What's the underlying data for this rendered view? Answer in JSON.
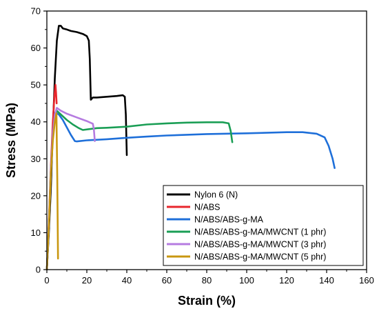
{
  "chart_data": {
    "type": "line",
    "xlabel": "Strain (%)",
    "ylabel": "Stress (MPa)",
    "xlim": [
      0,
      160
    ],
    "ylim": [
      0,
      70
    ],
    "xticks": [
      0,
      20,
      40,
      60,
      80,
      100,
      120,
      140,
      160
    ],
    "yticks": [
      0,
      10,
      20,
      30,
      40,
      50,
      60,
      70
    ],
    "xtick_labels": [
      "0",
      "20",
      "40",
      "60",
      "80",
      "100",
      "120",
      "140",
      "160"
    ],
    "ytick_labels": [
      "0",
      "10",
      "20",
      "30",
      "40",
      "50",
      "60",
      "70"
    ],
    "grid": false,
    "legend_position": "bottom-right",
    "series": [
      {
        "name": "Nylon 6 (N)",
        "color": "#000000",
        "points": [
          [
            0,
            0
          ],
          [
            1,
            10
          ],
          [
            2,
            22
          ],
          [
            3,
            38
          ],
          [
            4,
            52
          ],
          [
            5,
            62
          ],
          [
            6,
            66
          ],
          [
            7,
            66
          ],
          [
            8,
            65.3
          ],
          [
            10,
            65
          ],
          [
            12,
            64.6
          ],
          [
            15,
            64.3
          ],
          [
            18,
            63.8
          ],
          [
            20,
            63.2
          ],
          [
            21,
            62
          ],
          [
            21.5,
            57
          ],
          [
            22,
            46
          ],
          [
            23,
            46.6
          ],
          [
            25,
            46.6
          ],
          [
            30,
            46.8
          ],
          [
            35,
            47
          ],
          [
            38,
            47.2
          ],
          [
            39,
            46.8
          ],
          [
            39.5,
            42
          ],
          [
            40,
            31
          ]
        ]
      },
      {
        "name": "N/ABS",
        "color": "#e8262c",
        "points": [
          [
            0,
            0
          ],
          [
            1,
            13
          ],
          [
            2,
            28
          ],
          [
            3,
            40
          ],
          [
            3.8,
            47
          ],
          [
            4.3,
            50
          ],
          [
            4.6,
            48
          ],
          [
            4.9,
            45
          ]
        ]
      },
      {
        "name": "N/ABS/ABS-g-MA",
        "color": "#1e6fd9",
        "points": [
          [
            0,
            0
          ],
          [
            1,
            12
          ],
          [
            2,
            26
          ],
          [
            3,
            36
          ],
          [
            4,
            41
          ],
          [
            5,
            42.3
          ],
          [
            6,
            42
          ],
          [
            8,
            40.5
          ],
          [
            10,
            38.5
          ],
          [
            12,
            36.5
          ],
          [
            14,
            34.8
          ],
          [
            15,
            34.7
          ],
          [
            20,
            35
          ],
          [
            30,
            35.3
          ],
          [
            40,
            35.7
          ],
          [
            50,
            36
          ],
          [
            60,
            36.3
          ],
          [
            80,
            36.7
          ],
          [
            100,
            36.9
          ],
          [
            120,
            37.2
          ],
          [
            128,
            37.2
          ],
          [
            135,
            36.8
          ],
          [
            139,
            35.8
          ],
          [
            141,
            33.5
          ],
          [
            143,
            30
          ],
          [
            144,
            27.5
          ]
        ]
      },
      {
        "name": "N/ABS/ABS-g-MA/MWCNT (1 phr)",
        "color": "#1a9e55",
        "points": [
          [
            0,
            0
          ],
          [
            1,
            12
          ],
          [
            2,
            27
          ],
          [
            3,
            37
          ],
          [
            4,
            42
          ],
          [
            5,
            43
          ],
          [
            7,
            42
          ],
          [
            10,
            40.5
          ],
          [
            13,
            39.3
          ],
          [
            16,
            38.3
          ],
          [
            18,
            37.8
          ],
          [
            25,
            38.3
          ],
          [
            30,
            38.4
          ],
          [
            40,
            38.7
          ],
          [
            50,
            39.3
          ],
          [
            60,
            39.6
          ],
          [
            70,
            39.8
          ],
          [
            80,
            39.9
          ],
          [
            88,
            39.9
          ],
          [
            91,
            39.6
          ],
          [
            92,
            37.5
          ],
          [
            92.8,
            34.5
          ]
        ]
      },
      {
        "name": "N/ABS/ABS-g-MA/MWCNT (3 phr)",
        "color": "#b57be0",
        "points": [
          [
            0,
            0
          ],
          [
            1,
            12
          ],
          [
            2,
            27
          ],
          [
            3,
            37
          ],
          [
            4,
            42
          ],
          [
            5,
            43.8
          ],
          [
            7,
            43
          ],
          [
            10,
            42.2
          ],
          [
            15,
            41.2
          ],
          [
            20,
            40.2
          ],
          [
            23,
            39.5
          ],
          [
            23.5,
            38
          ],
          [
            24,
            34.8
          ]
        ]
      },
      {
        "name": "N/ABS/ABS-g-MA/MWCNT (5 phr)",
        "color": "#c99710",
        "points": [
          [
            0,
            0
          ],
          [
            1,
            12
          ],
          [
            2,
            26
          ],
          [
            3,
            35
          ],
          [
            4,
            40
          ],
          [
            4.8,
            42.3
          ],
          [
            5.2,
            25
          ],
          [
            5.6,
            3
          ]
        ]
      }
    ]
  }
}
